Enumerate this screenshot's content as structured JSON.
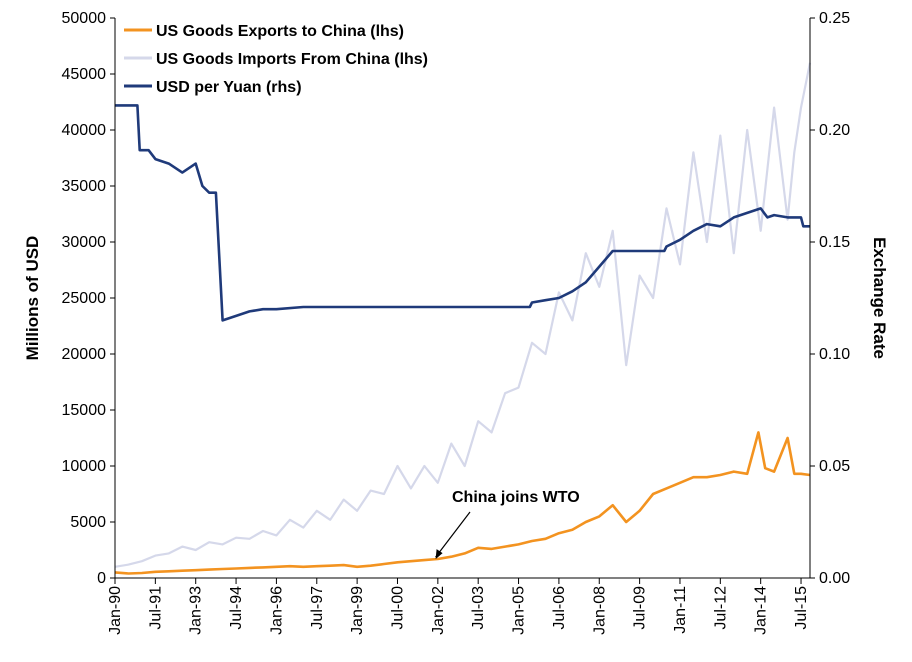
{
  "chart_data": {
    "type": "line",
    "title": "",
    "left_axis": {
      "label": "Millions of USD",
      "ylim": [
        0,
        50000
      ],
      "ticks": [
        "0",
        "5000",
        "10000",
        "15000",
        "20000",
        "25000",
        "30000",
        "35000",
        "40000",
        "45000",
        "50000"
      ]
    },
    "right_axis": {
      "label": "Exchange Rate",
      "ylim": [
        0.0,
        0.25
      ],
      "ticks": [
        "0.00",
        "0.05",
        "0.10",
        "0.15",
        "0.20",
        "0.25"
      ]
    },
    "x_axis": {
      "range": [
        "1990-01",
        "2015-11"
      ],
      "tick_labels": [
        "Jan-90",
        "Jul-91",
        "Jan-93",
        "Jul-94",
        "Jan-96",
        "Jul-97",
        "Jan-99",
        "Jul-00",
        "Jan-02",
        "Jul-03",
        "Jan-05",
        "Jul-06",
        "Jan-08",
        "Jul-09",
        "Jan-11",
        "Jul-12",
        "Jan-14",
        "Jul-15"
      ]
    },
    "grid": false,
    "legend_position": "top-left",
    "series": [
      {
        "name": "US Goods Exports to China (lhs)",
        "axis": "left",
        "color": "#f39320",
        "points": [
          [
            "1990-01",
            500
          ],
          [
            "1990-07",
            400
          ],
          [
            "1991-01",
            450
          ],
          [
            "1991-07",
            550
          ],
          [
            "1992-01",
            600
          ],
          [
            "1992-07",
            650
          ],
          [
            "1993-01",
            700
          ],
          [
            "1993-07",
            750
          ],
          [
            "1994-01",
            800
          ],
          [
            "1994-07",
            850
          ],
          [
            "1995-01",
            900
          ],
          [
            "1995-07",
            950
          ],
          [
            "1996-01",
            1000
          ],
          [
            "1996-07",
            1050
          ],
          [
            "1997-01",
            1000
          ],
          [
            "1997-07",
            1050
          ],
          [
            "1998-01",
            1100
          ],
          [
            "1998-07",
            1150
          ],
          [
            "1999-01",
            1000
          ],
          [
            "1999-07",
            1100
          ],
          [
            "2000-01",
            1250
          ],
          [
            "2000-07",
            1400
          ],
          [
            "2001-01",
            1500
          ],
          [
            "2001-07",
            1600
          ],
          [
            "2002-01",
            1700
          ],
          [
            "2002-07",
            1900
          ],
          [
            "2003-01",
            2200
          ],
          [
            "2003-07",
            2700
          ],
          [
            "2004-01",
            2600
          ],
          [
            "2004-07",
            2800
          ],
          [
            "2005-01",
            3000
          ],
          [
            "2005-07",
            3300
          ],
          [
            "2006-01",
            3500
          ],
          [
            "2006-07",
            4000
          ],
          [
            "2007-01",
            4300
          ],
          [
            "2007-07",
            5000
          ],
          [
            "2008-01",
            5500
          ],
          [
            "2008-07",
            6500
          ],
          [
            "2009-01",
            5000
          ],
          [
            "2009-07",
            6000
          ],
          [
            "2010-01",
            7500
          ],
          [
            "2010-07",
            8000
          ],
          [
            "2011-01",
            8500
          ],
          [
            "2011-07",
            9000
          ],
          [
            "2012-01",
            9000
          ],
          [
            "2012-07",
            9200
          ],
          [
            "2013-01",
            9500
          ],
          [
            "2013-07",
            9300
          ],
          [
            "2013-12",
            13000
          ],
          [
            "2014-03",
            9800
          ],
          [
            "2014-07",
            9500
          ],
          [
            "2015-01",
            12500
          ],
          [
            "2015-04",
            9300
          ],
          [
            "2015-07",
            9300
          ],
          [
            "2015-11",
            9200
          ]
        ]
      },
      {
        "name": "US Goods Imports From China (lhs)",
        "axis": "left",
        "color": "#d5d8ea",
        "points": [
          [
            "1990-01",
            1000
          ],
          [
            "1990-07",
            1200
          ],
          [
            "1991-01",
            1500
          ],
          [
            "1991-07",
            2000
          ],
          [
            "1992-01",
            2200
          ],
          [
            "1992-07",
            2800
          ],
          [
            "1993-01",
            2500
          ],
          [
            "1993-07",
            3200
          ],
          [
            "1994-01",
            3000
          ],
          [
            "1994-07",
            3600
          ],
          [
            "1995-01",
            3500
          ],
          [
            "1995-07",
            4200
          ],
          [
            "1996-01",
            3800
          ],
          [
            "1996-07",
            5200
          ],
          [
            "1997-01",
            4500
          ],
          [
            "1997-07",
            6000
          ],
          [
            "1998-01",
            5200
          ],
          [
            "1998-07",
            7000
          ],
          [
            "1999-01",
            6000
          ],
          [
            "1999-07",
            7800
          ],
          [
            "2000-01",
            7500
          ],
          [
            "2000-07",
            10000
          ],
          [
            "2001-01",
            8000
          ],
          [
            "2001-07",
            10000
          ],
          [
            "2002-01",
            8500
          ],
          [
            "2002-07",
            12000
          ],
          [
            "2003-01",
            10000
          ],
          [
            "2003-07",
            14000
          ],
          [
            "2004-01",
            13000
          ],
          [
            "2004-07",
            16500
          ],
          [
            "2005-01",
            17000
          ],
          [
            "2005-07",
            21000
          ],
          [
            "2006-01",
            20000
          ],
          [
            "2006-07",
            25500
          ],
          [
            "2007-01",
            23000
          ],
          [
            "2007-07",
            29000
          ],
          [
            "2008-01",
            26000
          ],
          [
            "2008-07",
            31000
          ],
          [
            "2009-01",
            19000
          ],
          [
            "2009-07",
            27000
          ],
          [
            "2010-01",
            25000
          ],
          [
            "2010-07",
            33000
          ],
          [
            "2011-01",
            28000
          ],
          [
            "2011-07",
            38000
          ],
          [
            "2012-01",
            30000
          ],
          [
            "2012-07",
            39500
          ],
          [
            "2013-01",
            29000
          ],
          [
            "2013-07",
            40000
          ],
          [
            "2014-01",
            31000
          ],
          [
            "2014-07",
            42000
          ],
          [
            "2015-01",
            32000
          ],
          [
            "2015-04",
            38000
          ],
          [
            "2015-07",
            42000
          ],
          [
            "2015-11",
            46000
          ]
        ]
      },
      {
        "name": "USD per Yuan (rhs)",
        "axis": "right",
        "color": "#1f3a7a",
        "points": [
          [
            "1990-01",
            0.211
          ],
          [
            "1990-11",
            0.211
          ],
          [
            "1990-12",
            0.191
          ],
          [
            "1991-04",
            0.191
          ],
          [
            "1991-07",
            0.187
          ],
          [
            "1992-01",
            0.185
          ],
          [
            "1992-07",
            0.181
          ],
          [
            "1993-01",
            0.185
          ],
          [
            "1993-04",
            0.175
          ],
          [
            "1993-07",
            0.172
          ],
          [
            "1993-10",
            0.172
          ],
          [
            "1994-01",
            0.115
          ],
          [
            "1994-07",
            0.117
          ],
          [
            "1995-01",
            0.119
          ],
          [
            "1995-07",
            0.12
          ],
          [
            "1996-01",
            0.12
          ],
          [
            "1997-01",
            0.121
          ],
          [
            "1997-07",
            0.121
          ],
          [
            "1998-01",
            0.121
          ],
          [
            "2002-01",
            0.121
          ],
          [
            "2005-06",
            0.121
          ],
          [
            "2005-07",
            0.123
          ],
          [
            "2006-01",
            0.124
          ],
          [
            "2006-07",
            0.125
          ],
          [
            "2007-01",
            0.128
          ],
          [
            "2007-07",
            0.132
          ],
          [
            "2008-01",
            0.139
          ],
          [
            "2008-07",
            0.146
          ],
          [
            "2009-01",
            0.146
          ],
          [
            "2009-07",
            0.146
          ],
          [
            "2010-06",
            0.146
          ],
          [
            "2010-07",
            0.148
          ],
          [
            "2011-01",
            0.151
          ],
          [
            "2011-07",
            0.155
          ],
          [
            "2012-01",
            0.158
          ],
          [
            "2012-07",
            0.157
          ],
          [
            "2013-01",
            0.161
          ],
          [
            "2013-07",
            0.163
          ],
          [
            "2014-01",
            0.165
          ],
          [
            "2014-04",
            0.161
          ],
          [
            "2014-07",
            0.162
          ],
          [
            "2015-01",
            0.161
          ],
          [
            "2015-07",
            0.161
          ],
          [
            "2015-08",
            0.157
          ],
          [
            "2015-11",
            0.157
          ]
        ]
      }
    ],
    "annotations": [
      {
        "text": "China joins WTO",
        "points_to": [
          "2001-12",
          1600
        ]
      }
    ]
  }
}
